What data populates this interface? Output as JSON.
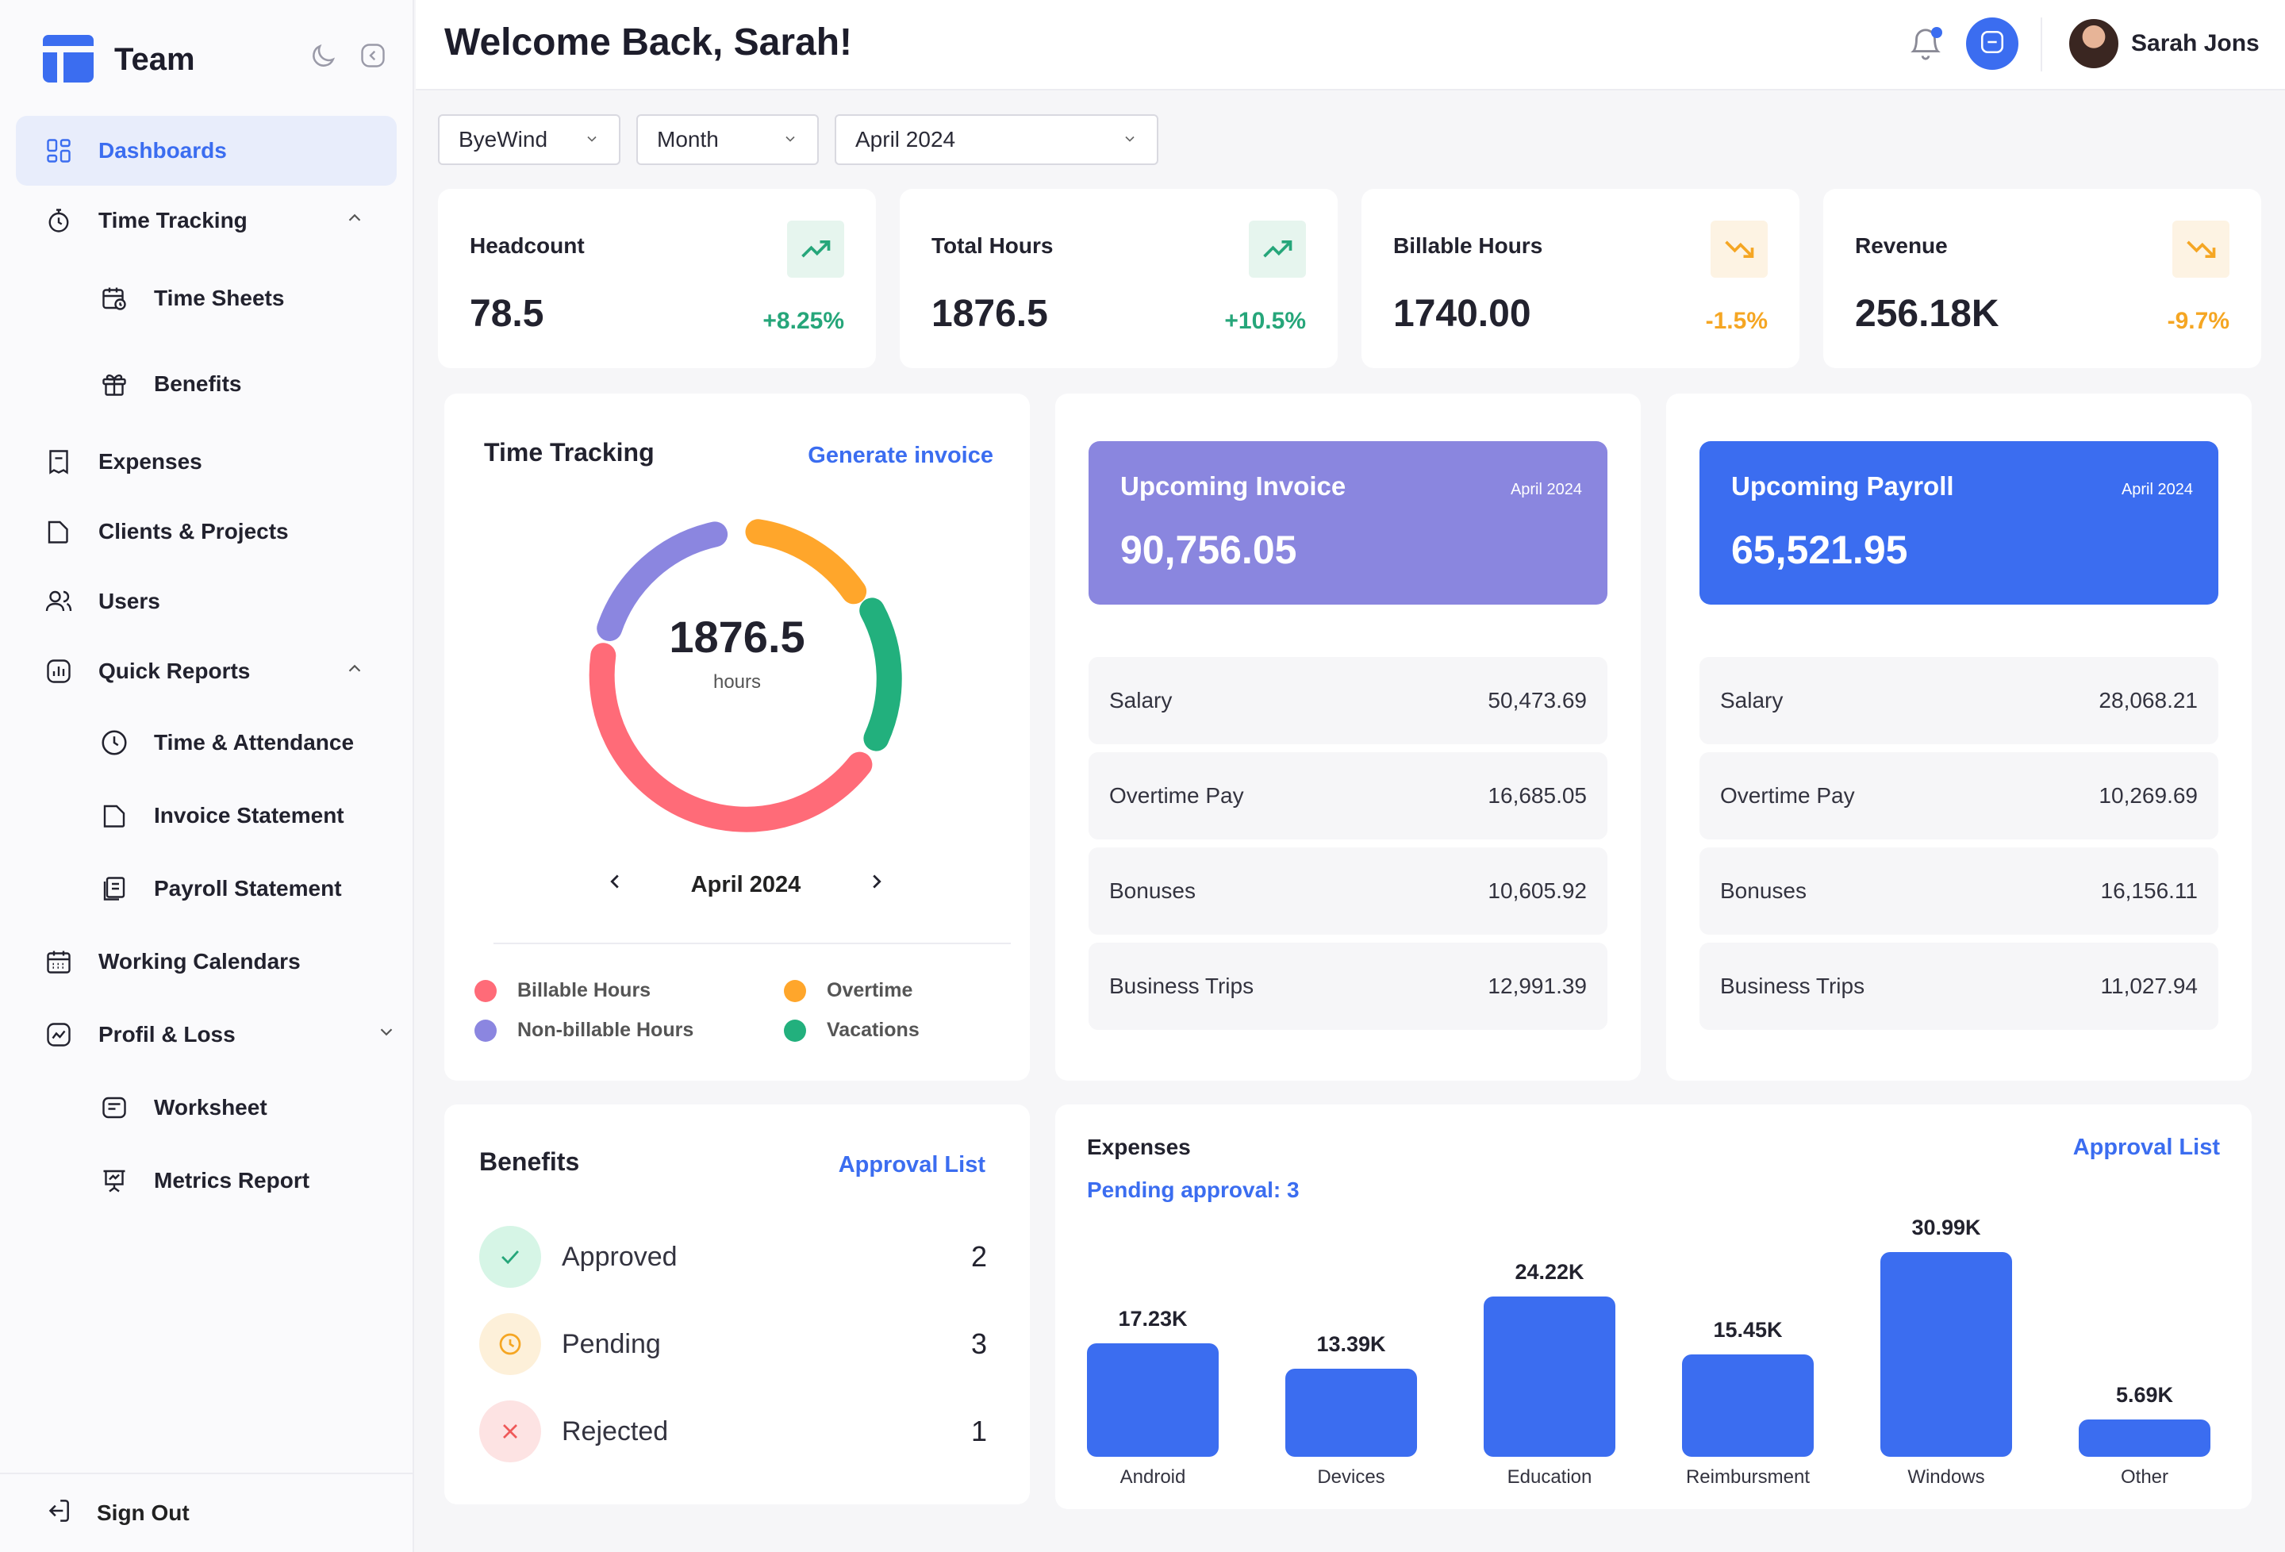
{
  "brand": {
    "name": "Team"
  },
  "sidebar": {
    "items": [
      {
        "label": "Dashboards"
      },
      {
        "label": "Time Tracking"
      },
      {
        "label": "Time Sheets"
      },
      {
        "label": "Benefits"
      },
      {
        "label": "Expenses"
      },
      {
        "label": "Clients & Projects"
      },
      {
        "label": "Users"
      },
      {
        "label": "Quick Reports"
      },
      {
        "label": "Time & Attendance"
      },
      {
        "label": "Invoice Statement"
      },
      {
        "label": "Payroll Statement"
      },
      {
        "label": "Working Calendars"
      },
      {
        "label": "Profil & Loss"
      },
      {
        "label": "Worksheet"
      },
      {
        "label": "Metrics Report"
      }
    ],
    "signout": "Sign Out"
  },
  "header": {
    "welcome": "Welcome Back, Sarah!",
    "user_name": "Sarah Jons"
  },
  "filters": {
    "company": "ByeWind",
    "period": "Month",
    "date": "April 2024"
  },
  "stats": [
    {
      "label": "Headcount",
      "value": "78.5",
      "change": "+8.25%",
      "trend": "up"
    },
    {
      "label": "Total Hours",
      "value": "1876.5",
      "change": "+10.5%",
      "trend": "up"
    },
    {
      "label": "Billable Hours",
      "value": "1740.00",
      "change": "-1.5%",
      "trend": "down"
    },
    {
      "label": "Revenue",
      "value": "256.18K",
      "change": "-9.7%",
      "trend": "down"
    }
  ],
  "time_tracking": {
    "title": "Time Tracking",
    "action": "Generate invoice",
    "total": "1876.5",
    "unit": "hours",
    "month": "April 2024",
    "legend": [
      {
        "label": "Billable Hours",
        "color": "#ff6b78"
      },
      {
        "label": "Overtime",
        "color": "#ffa62b"
      },
      {
        "label": "Non-billable Hours",
        "color": "#8b86e0"
      },
      {
        "label": "Vacations",
        "color": "#22b07d"
      }
    ]
  },
  "invoice": {
    "title": "Upcoming Invoice",
    "date": "April 2024",
    "amount": "90,756.05",
    "color": "#8a86df",
    "rows": [
      {
        "label": "Salary",
        "value": "50,473.69"
      },
      {
        "label": "Overtime Pay",
        "value": "16,685.05"
      },
      {
        "label": "Bonuses",
        "value": "10,605.92"
      },
      {
        "label": "Business Trips",
        "value": "12,991.39"
      }
    ]
  },
  "payroll": {
    "title": "Upcoming Payroll",
    "date": "April 2024",
    "amount": "65,521.95",
    "color": "#3b6df0",
    "rows": [
      {
        "label": "Salary",
        "value": "28,068.21"
      },
      {
        "label": "Overtime Pay",
        "value": "10,269.69"
      },
      {
        "label": "Bonuses",
        "value": "16,156.11"
      },
      {
        "label": "Business Trips",
        "value": "11,027.94"
      }
    ]
  },
  "benefits": {
    "title": "Benefits",
    "action": "Approval List",
    "rows": [
      {
        "label": "Approved",
        "count": "2"
      },
      {
        "label": "Pending",
        "count": "3"
      },
      {
        "label": "Rejected",
        "count": "1"
      }
    ]
  },
  "expenses": {
    "title": "Expenses",
    "pending": "Pending  approval: 3",
    "action": "Approval List"
  },
  "chart_data": {
    "type": "bar",
    "categories": [
      "Android",
      "Devices",
      "Education",
      "Reimbursment",
      "Windows",
      "Other"
    ],
    "values": [
      17.23,
      13.39,
      24.22,
      15.45,
      30.99,
      5.69
    ],
    "value_labels": [
      "17.23K",
      "13.39K",
      "24.22K",
      "15.45K",
      "30.99K",
      "5.69K"
    ],
    "bar_color": "#3b6df0",
    "grid": false
  }
}
